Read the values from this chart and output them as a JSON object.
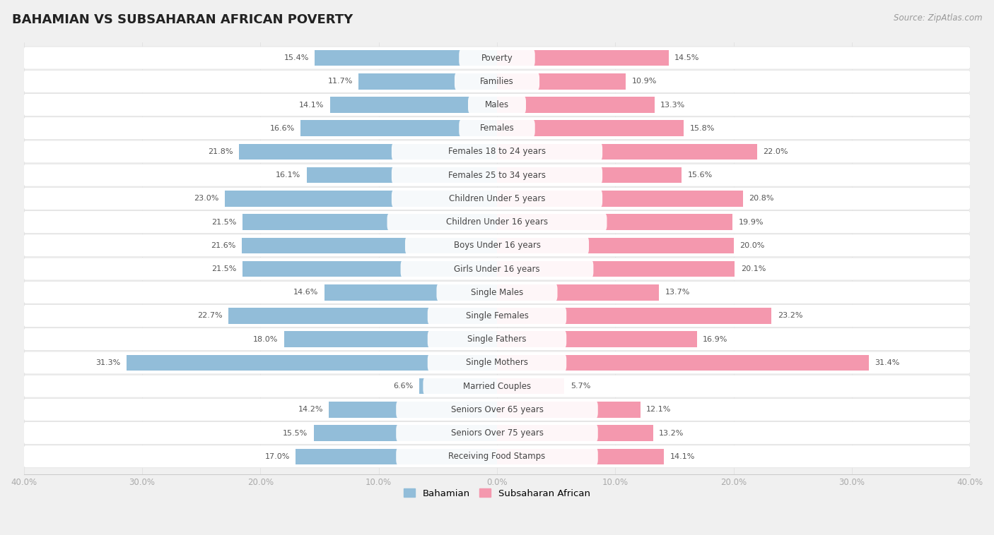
{
  "title": "BAHAMIAN VS SUBSAHARAN AFRICAN POVERTY",
  "source": "Source: ZipAtlas.com",
  "categories": [
    "Poverty",
    "Families",
    "Males",
    "Females",
    "Females 18 to 24 years",
    "Females 25 to 34 years",
    "Children Under 5 years",
    "Children Under 16 years",
    "Boys Under 16 years",
    "Girls Under 16 years",
    "Single Males",
    "Single Females",
    "Single Fathers",
    "Single Mothers",
    "Married Couples",
    "Seniors Over 65 years",
    "Seniors Over 75 years",
    "Receiving Food Stamps"
  ],
  "bahamian": [
    15.4,
    11.7,
    14.1,
    16.6,
    21.8,
    16.1,
    23.0,
    21.5,
    21.6,
    21.5,
    14.6,
    22.7,
    18.0,
    31.3,
    6.6,
    14.2,
    15.5,
    17.0
  ],
  "subsaharan": [
    14.5,
    10.9,
    13.3,
    15.8,
    22.0,
    15.6,
    20.8,
    19.9,
    20.0,
    20.1,
    13.7,
    23.2,
    16.9,
    31.4,
    5.7,
    12.1,
    13.2,
    14.1
  ],
  "bahamian_color": "#92bdd9",
  "subsaharan_color": "#f498ae",
  "row_bg_color": "#ffffff",
  "sep_color": "#e0e0e0",
  "fig_bg_color": "#f0f0f0",
  "xlim": 40.0,
  "legend_labels": [
    "Bahamian",
    "Subsaharan African"
  ],
  "label_fontsize": 8.5,
  "value_fontsize": 8.0,
  "title_fontsize": 13,
  "source_fontsize": 8.5
}
